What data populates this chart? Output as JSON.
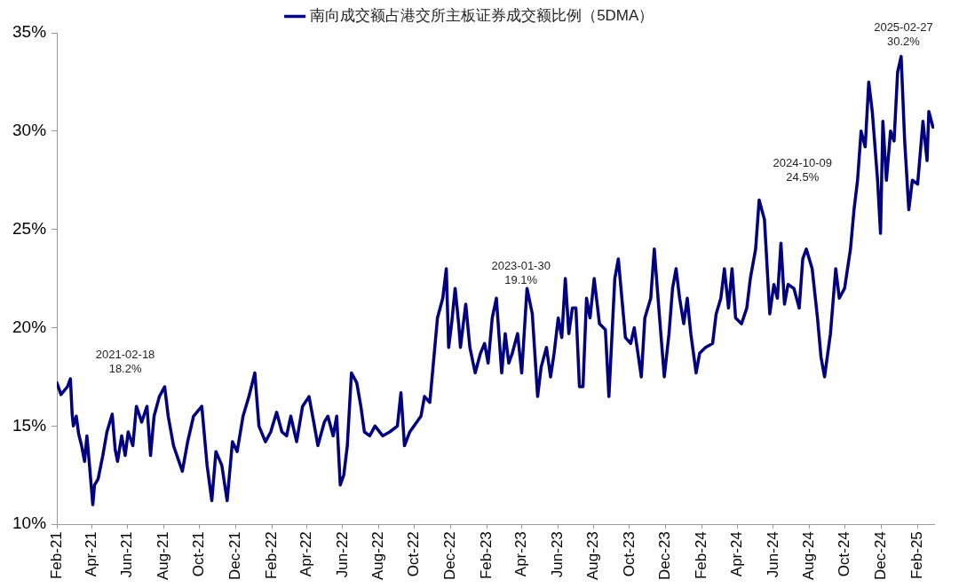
{
  "chart_data": {
    "type": "line",
    "marker": "none",
    "line_style": "solid",
    "grid": false,
    "legend": "top",
    "annotations": [
      "2021-02-18\n18.2%",
      "2023-01-30\n19.1%",
      "2024-10-09\n24.5%",
      "2025-02-27\n30.2%"
    ],
    "xlim": [
      "2021-02-01",
      "2025-03-01"
    ],
    "xticks": [
      {
        "value": "2021-02",
        "label": "Feb-21"
      },
      {
        "value": "2021-04",
        "label": "Apr-21"
      },
      {
        "value": "2021-06",
        "label": "Jun-21"
      },
      {
        "value": "2021-08",
        "label": "Aug-21"
      },
      {
        "value": "2021-10",
        "label": "Oct-21"
      },
      {
        "value": "2021-12",
        "label": "Dec-21"
      },
      {
        "value": "2022-02",
        "label": "Feb-22"
      },
      {
        "value": "2022-04",
        "label": "Apr-22"
      },
      {
        "value": "2022-06",
        "label": "Jun-22"
      },
      {
        "value": "2022-08",
        "label": "Aug-22"
      },
      {
        "value": "2022-10",
        "label": "Oct-22"
      },
      {
        "value": "2022-12",
        "label": "Dec-22"
      },
      {
        "value": "2023-02",
        "label": "Feb-23"
      },
      {
        "value": "2023-04",
        "label": "Apr-23"
      },
      {
        "value": "2023-06",
        "label": "Jun-23"
      },
      {
        "value": "2023-08",
        "label": "Aug-23"
      },
      {
        "value": "2023-10",
        "label": "Oct-23"
      },
      {
        "value": "2023-12",
        "label": "Dec-23"
      },
      {
        "value": "2024-02",
        "label": "Feb-24"
      },
      {
        "value": "2024-04",
        "label": "Apr-24"
      },
      {
        "value": "2024-06",
        "label": "Jun-24"
      },
      {
        "value": "2024-08",
        "label": "Aug-24"
      },
      {
        "value": "2024-10",
        "label": "Oct-24"
      },
      {
        "value": "2024-12",
        "label": "Dec-24"
      },
      {
        "value": "2025-02",
        "label": "Feb-25"
      }
    ],
    "ylim": [
      10,
      35
    ],
    "yticks": [
      {
        "value": 10,
        "label": "10%"
      },
      {
        "value": 15,
        "label": "15%"
      },
      {
        "value": 20,
        "label": "20%"
      },
      {
        "value": 25,
        "label": "25%"
      },
      {
        "value": 30,
        "label": "30%"
      },
      {
        "value": 35,
        "label": "35%"
      }
    ],
    "series": [
      {
        "name": "南向成交额占港交所主板证券成交额比例（5DMA）",
        "color": "#000080",
        "x": [
          "2021-02-01",
          "2021-02-08",
          "2021-02-19",
          "2021-02-24",
          "2021-02-27",
          "2021-03-01",
          "2021-03-06",
          "2021-03-10",
          "2021-03-15",
          "2021-03-20",
          "2021-03-24",
          "2021-03-27",
          "2021-04-03",
          "2021-04-06",
          "2021-04-12",
          "2021-04-20",
          "2021-04-27",
          "2021-05-06",
          "2021-05-11",
          "2021-05-15",
          "2021-05-22",
          "2021-05-28",
          "2021-06-02",
          "2021-06-10",
          "2021-06-16",
          "2021-06-25",
          "2021-07-04",
          "2021-07-10",
          "2021-07-16",
          "2021-07-25",
          "2021-08-03",
          "2021-08-09",
          "2021-08-18",
          "2021-09-02",
          "2021-09-11",
          "2021-09-21",
          "2021-10-05",
          "2021-10-14",
          "2021-10-22",
          "2021-10-29",
          "2021-11-08",
          "2021-11-17",
          "2021-11-26",
          "2021-12-04",
          "2021-12-14",
          "2021-12-24",
          "2022-01-03",
          "2022-01-10",
          "2022-01-21",
          "2022-01-30",
          "2022-02-09",
          "2022-02-18",
          "2022-02-26",
          "2022-03-05",
          "2022-03-15",
          "2022-03-25",
          "2022-04-05",
          "2022-04-13",
          "2022-04-20",
          "2022-05-01",
          "2022-05-07",
          "2022-05-16",
          "2022-05-22",
          "2022-05-28",
          "2022-06-03",
          "2022-06-09",
          "2022-06-16",
          "2022-06-25",
          "2022-07-02",
          "2022-07-08",
          "2022-07-17",
          "2022-07-26",
          "2022-08-08",
          "2022-08-20",
          "2022-09-02",
          "2022-09-08",
          "2022-09-14",
          "2022-09-23",
          "2022-10-12",
          "2022-10-18",
          "2022-10-27",
          "2022-11-03",
          "2022-11-09",
          "2022-11-18",
          "2022-11-24",
          "2022-11-28",
          "2022-12-03",
          "2022-12-09",
          "2022-12-15",
          "2022-12-18",
          "2022-12-27",
          "2023-01-03",
          "2023-01-12",
          "2023-01-21",
          "2023-01-28",
          "2023-02-03",
          "2023-02-10",
          "2023-02-17",
          "2023-02-26",
          "2023-03-04",
          "2023-03-10",
          "2023-03-16",
          "2023-03-25",
          "2023-04-01",
          "2023-04-10",
          "2023-04-19",
          "2023-04-28",
          "2023-05-04",
          "2023-05-13",
          "2023-05-20",
          "2023-05-26",
          "2023-06-02",
          "2023-06-08",
          "2023-06-14",
          "2023-06-20",
          "2023-06-26",
          "2023-07-02",
          "2023-07-08",
          "2023-07-14",
          "2023-07-20",
          "2023-07-26",
          "2023-08-02",
          "2023-08-11",
          "2023-08-21",
          "2023-08-27",
          "2023-09-06",
          "2023-09-12",
          "2023-09-15",
          "2023-09-24",
          "2023-10-03",
          "2023-10-09",
          "2023-10-21",
          "2023-10-27",
          "2023-11-06",
          "2023-11-12",
          "2023-11-21",
          "2023-11-29",
          "2023-12-07",
          "2023-12-13",
          "2023-12-19",
          "2023-12-25",
          "2024-01-01",
          "2024-01-07",
          "2024-01-13",
          "2024-01-22",
          "2024-01-28",
          "2024-02-07",
          "2024-02-19",
          "2024-02-25",
          "2024-03-04",
          "2024-03-10",
          "2024-03-17",
          "2024-03-23",
          "2024-03-29",
          "2024-04-08",
          "2024-04-17",
          "2024-04-23",
          "2024-05-02",
          "2024-05-08",
          "2024-05-17",
          "2024-05-26",
          "2024-06-02",
          "2024-06-08",
          "2024-06-14",
          "2024-06-20",
          "2024-06-26",
          "2024-07-06",
          "2024-07-15",
          "2024-07-21",
          "2024-07-27",
          "2024-08-06",
          "2024-08-15",
          "2024-08-21",
          "2024-08-27",
          "2024-09-06",
          "2024-09-15",
          "2024-09-21",
          "2024-09-30",
          "2024-10-10",
          "2024-10-16",
          "2024-10-22",
          "2024-10-28",
          "2024-11-04",
          "2024-11-10",
          "2024-11-16",
          "2024-11-25",
          "2024-11-30",
          "2024-12-04",
          "2024-12-10",
          "2024-12-17",
          "2024-12-23",
          "2024-12-29",
          "2025-01-04",
          "2025-01-10",
          "2025-01-17",
          "2025-01-23",
          "2025-02-01",
          "2025-02-10",
          "2025-02-17",
          "2025-02-20",
          "2025-02-27"
        ],
        "values": [
          17.2,
          16.6,
          17.0,
          17.4,
          15.6,
          15.0,
          15.5,
          14.6,
          14.0,
          13.2,
          14.5,
          13.5,
          11.0,
          12.0,
          12.3,
          13.5,
          14.7,
          15.6,
          13.8,
          13.2,
          14.5,
          13.5,
          14.7,
          14.0,
          16.0,
          15.2,
          16.0,
          13.5,
          15.5,
          16.5,
          17.0,
          15.5,
          14.0,
          12.7,
          14.2,
          15.5,
          16.0,
          13.0,
          11.2,
          13.7,
          13.0,
          11.2,
          14.2,
          13.7,
          15.5,
          16.5,
          17.7,
          15.0,
          14.2,
          14.7,
          15.7,
          14.7,
          14.5,
          15.5,
          14.2,
          16.0,
          16.5,
          15.2,
          14.0,
          15.2,
          15.5,
          14.5,
          15.5,
          12.0,
          12.5,
          14.0,
          17.7,
          17.2,
          16.0,
          14.7,
          14.5,
          15.0,
          14.5,
          14.7,
          15.0,
          16.7,
          14.0,
          14.7,
          15.5,
          16.5,
          16.2,
          18.5,
          20.5,
          21.5,
          23.0,
          19.0,
          20.2,
          22.0,
          20.2,
          19.0,
          21.2,
          19.0,
          17.7,
          18.7,
          19.2,
          18.2,
          20.5,
          21.5,
          17.7,
          19.7,
          18.2,
          18.7,
          19.7,
          17.7,
          22.0,
          20.7,
          16.5,
          18.0,
          19.0,
          17.5,
          18.7,
          20.5,
          19.5,
          22.5,
          19.7,
          21.0,
          21.0,
          17.0,
          17.0,
          21.5,
          20.5,
          22.5,
          20.2,
          19.9,
          16.5,
          22.5,
          23.5,
          22.5,
          19.5,
          19.2,
          20.0,
          17.5,
          20.5,
          21.5,
          24.0,
          20.5,
          17.5,
          19.7,
          22.0,
          23.0,
          21.5,
          20.2,
          21.5,
          19.7,
          17.7,
          18.7,
          19.0,
          19.2,
          20.7,
          21.5,
          23.0,
          21.0,
          23.0,
          20.5,
          20.2,
          21.0,
          22.5,
          24.0,
          26.5,
          25.5,
          20.7,
          22.2,
          21.5,
          24.3,
          21.2,
          22.2,
          22.0,
          21.0,
          23.5,
          24.0,
          23.0,
          20.5,
          18.5,
          17.5,
          19.7,
          23.0,
          21.5,
          22.0,
          24.0,
          26.0,
          27.5,
          30.0,
          29.2,
          32.5,
          31.0,
          27.5,
          24.8,
          30.5,
          27.5,
          30.0,
          29.5,
          33.0,
          33.8,
          29.5,
          26.0,
          27.5,
          27.3,
          30.5,
          28.5,
          31.0,
          30.2
        ]
      }
    ]
  }
}
